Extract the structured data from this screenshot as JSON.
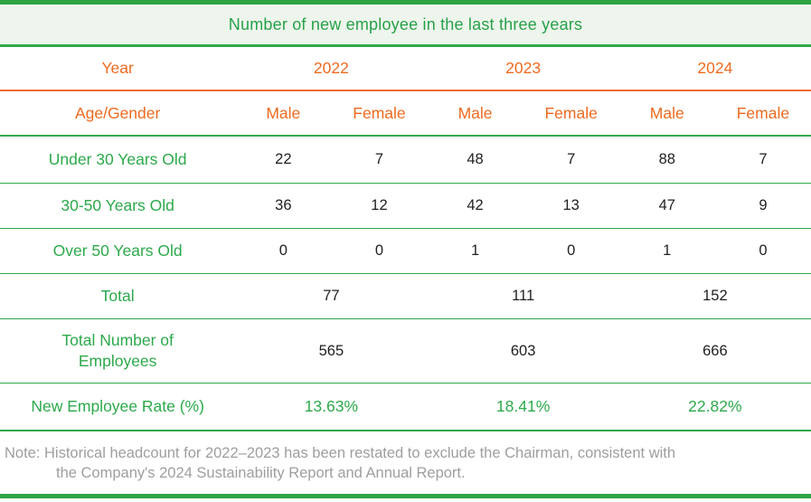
{
  "title": "Number of new employee in the last three years",
  "colors": {
    "green_text": "#2ca94b",
    "green_border": "#2fa94c",
    "green_bar": "#2da344",
    "orange_text": "#ee6a1f",
    "title_background": "#edf5ec",
    "number_text": "#1f1f1f",
    "note_gray": "#9e9e9e"
  },
  "header": {
    "year_label": "Year",
    "years": [
      "2022",
      "2023",
      "2024"
    ],
    "age_gender_label": "Age/Gender",
    "gender_labels": [
      "Male",
      "Female",
      "Male",
      "Female",
      "Male",
      "Female"
    ]
  },
  "rows": [
    {
      "label": "Under 30 Years Old",
      "values": [
        "22",
        "7",
        "48",
        "7",
        "88",
        "7"
      ]
    },
    {
      "label": "30-50 Years Old",
      "values": [
        "36",
        "12",
        "42",
        "13",
        "47",
        "9"
      ]
    },
    {
      "label": "Over 50 Years Old",
      "values": [
        "0",
        "0",
        "1",
        "0",
        "1",
        "0"
      ]
    }
  ],
  "summary_rows": [
    {
      "label": "Total",
      "values": [
        "77",
        "111",
        "152"
      ]
    },
    {
      "label": "Total Number of Employees",
      "values": [
        "565",
        "603",
        "666"
      ]
    },
    {
      "label": "New Employee Rate (%)",
      "values": [
        "13.63%",
        "18.41%",
        "22.82%"
      ]
    }
  ],
  "note": {
    "line1": "Note: Historical headcount for 2022–2023 has been restated to exclude the Chairman, consistent with",
    "line2": "the Company's 2024 Sustainability Report and Annual Report."
  },
  "chart_data": {
    "type": "table",
    "title": "Number of new employee in the last three years",
    "columns": [
      "Age/Gender",
      "2022 Male",
      "2022 Female",
      "2023 Male",
      "2023 Female",
      "2024 Male",
      "2024 Female"
    ],
    "rows": [
      {
        "label": "Under 30 Years Old",
        "values": [
          22,
          7,
          48,
          7,
          88,
          7
        ]
      },
      {
        "label": "30-50 Years Old",
        "values": [
          36,
          12,
          42,
          13,
          47,
          9
        ]
      },
      {
        "label": "Over 50 Years Old",
        "values": [
          0,
          0,
          1,
          0,
          1,
          0
        ]
      },
      {
        "label": "Total",
        "values_by_year": {
          "2022": 77,
          "2023": 111,
          "2024": 152
        }
      },
      {
        "label": "Total Number of Employees",
        "values_by_year": {
          "2022": 565,
          "2023": 603,
          "2024": 666
        }
      },
      {
        "label": "New Employee Rate (%)",
        "values_by_year": {
          "2022": "13.63%",
          "2023": "18.41%",
          "2024": "22.82%"
        }
      }
    ],
    "note": "Note: Historical headcount for 2022–2023 has been restated to exclude the Chairman, consistent with the Company's 2024 Sustainability Report and Annual Report."
  }
}
